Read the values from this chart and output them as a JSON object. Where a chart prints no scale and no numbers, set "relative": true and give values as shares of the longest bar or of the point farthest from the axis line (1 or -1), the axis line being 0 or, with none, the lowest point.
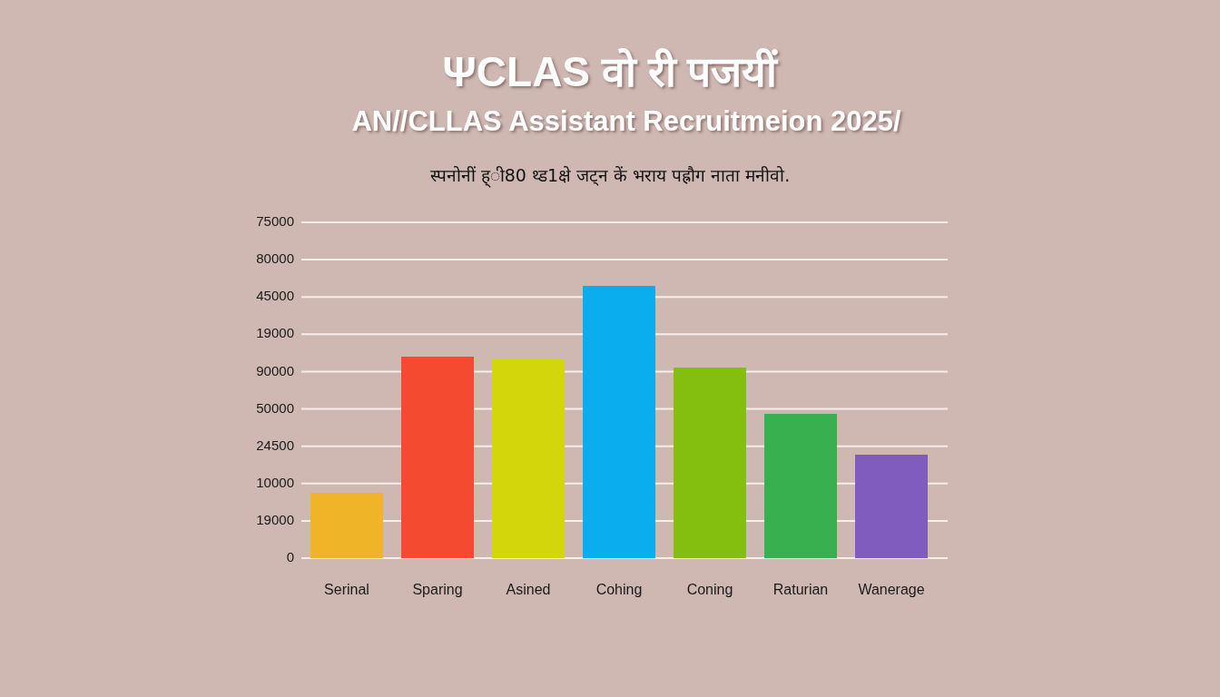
{
  "chart_data": {
    "type": "bar",
    "title": "ΨCLAS वो री पजयीं",
    "subtitle": "AN//CLLAS Assistant Recruitmeion 2025/",
    "annotations": [
      "स्पनोनीं ह्ी80 थ्ड1क्षे जट्न कें भराय पह्रौग नाता मनीवो.",
      "75000",
      "80000",
      "45000",
      "19000",
      "90000",
      "50000",
      "24500",
      "10000",
      "19000",
      "0"
    ],
    "categories": [
      "Serinal",
      "Sparing",
      "Asined",
      "Cohing",
      "Coning",
      "Raturian",
      "Wanerage"
    ],
    "values": [
      0.24,
      0.74,
      0.73,
      1,
      0.7,
      0.53,
      0.38
    ],
    "colors": [
      "#f0b429",
      "#f44a30",
      "#d4d60c",
      "#0aaeee",
      "#84be0e",
      "#38b050",
      "#7f5cbd"
    ],
    "relative": true,
    "grid": "y",
    "legend": false
  }
}
